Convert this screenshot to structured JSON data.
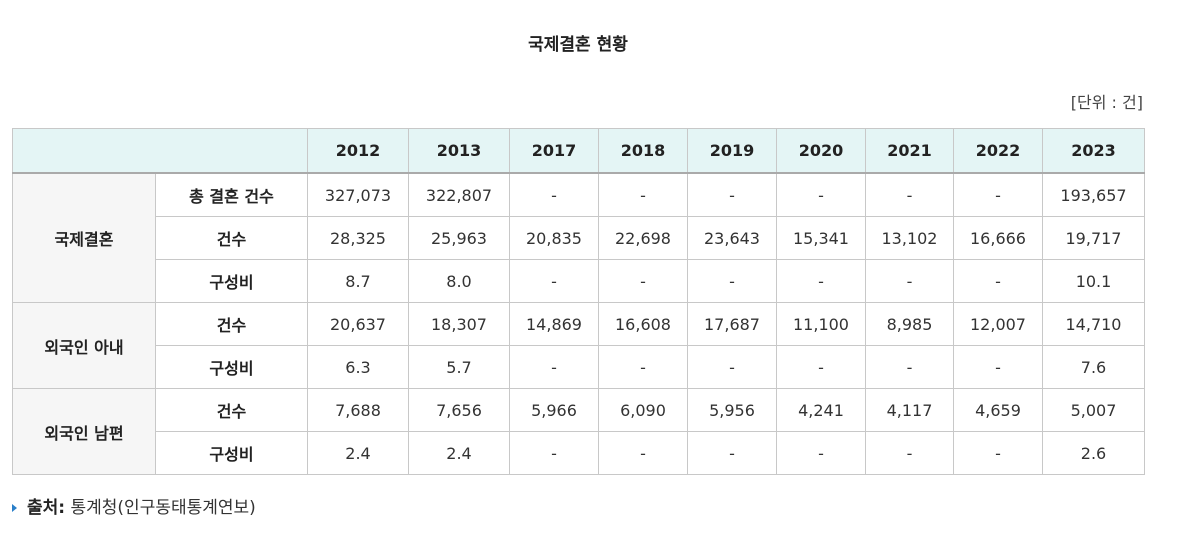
{
  "title": "국제결혼 현황",
  "unit": "[단위 : 건]",
  "table": {
    "columns": [
      "2012",
      "2013",
      "2017",
      "2018",
      "2019",
      "2020",
      "2021",
      "2022",
      "2023"
    ],
    "groups": [
      {
        "label": "국제결혼",
        "rows": [
          {
            "label": "총 결혼 건수",
            "cells": [
              "327,073",
              "322,807",
              "-",
              "-",
              "-",
              "-",
              "-",
              "-",
              "193,657"
            ]
          },
          {
            "label": "건수",
            "cells": [
              "28,325",
              "25,963",
              "20,835",
              "22,698",
              "23,643",
              "15,341",
              "13,102",
              "16,666",
              "19,717"
            ]
          },
          {
            "label": "구성비",
            "cells": [
              "8.7",
              "8.0",
              "-",
              "-",
              "-",
              "-",
              "-",
              "-",
              "10.1"
            ]
          }
        ]
      },
      {
        "label": "외국인 아내",
        "rows": [
          {
            "label": "건수",
            "cells": [
              "20,637",
              "18,307",
              "14,869",
              "16,608",
              "17,687",
              "11,100",
              "8,985",
              "12,007",
              "14,710"
            ]
          },
          {
            "label": "구성비",
            "cells": [
              "6.3",
              "5.7",
              "-",
              "-",
              "-",
              "-",
              "-",
              "-",
              "7.6"
            ]
          }
        ]
      },
      {
        "label": "외국인 남편",
        "rows": [
          {
            "label": "건수",
            "cells": [
              "7,688",
              "7,656",
              "5,966",
              "6,090",
              "5,956",
              "4,241",
              "4,117",
              "4,659",
              "5,007"
            ]
          },
          {
            "label": "구성비",
            "cells": [
              "2.4",
              "2.4",
              "-",
              "-",
              "-",
              "-",
              "-",
              "-",
              "2.6"
            ]
          }
        ]
      }
    ]
  },
  "source": {
    "label": "출처:",
    "text": "통계청(인구동태통계연보)"
  }
}
